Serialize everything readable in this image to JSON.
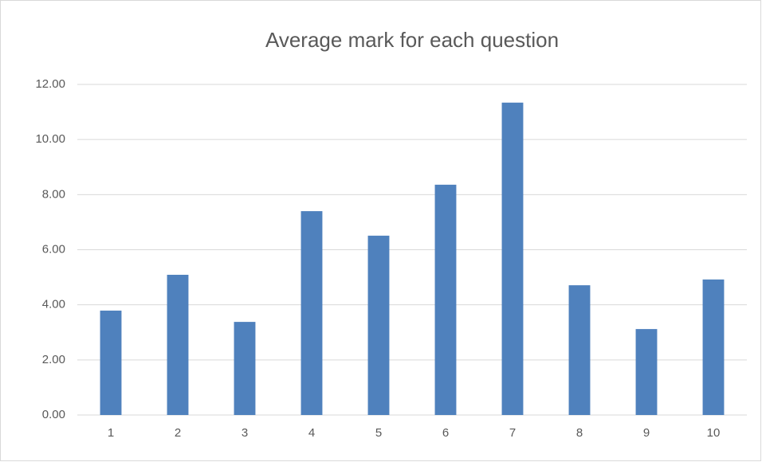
{
  "chart_data": {
    "type": "bar",
    "title": "Average mark for each question",
    "categories": [
      "1",
      "2",
      "3",
      "4",
      "5",
      "6",
      "7",
      "8",
      "9",
      "10"
    ],
    "values": [
      3.79,
      5.09,
      3.38,
      7.4,
      6.51,
      8.36,
      11.34,
      4.71,
      3.12,
      4.92
    ],
    "color": "#4f81bd",
    "ylim": [
      0,
      12
    ],
    "yticks": [
      {
        "value": 0,
        "label": "0.00"
      },
      {
        "value": 2,
        "label": "2.00"
      },
      {
        "value": 4,
        "label": "4.00"
      },
      {
        "value": 6,
        "label": "6.00"
      },
      {
        "value": 8,
        "label": "8.00"
      },
      {
        "value": 10,
        "label": "10.00"
      },
      {
        "value": 12,
        "label": "12.00"
      }
    ],
    "grid": true
  }
}
